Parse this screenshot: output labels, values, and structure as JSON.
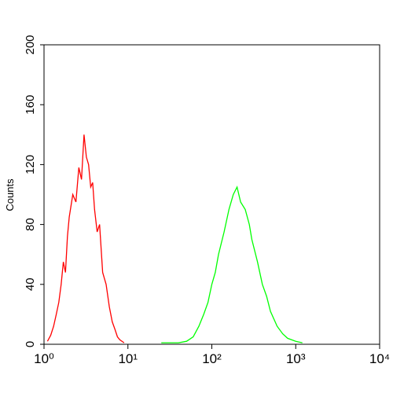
{
  "chart_data": {
    "type": "line",
    "y_label": "Counts",
    "xscale": "log",
    "xlim": [
      1,
      10000
    ],
    "xticks": [
      {
        "value": 1,
        "label": "10⁰"
      },
      {
        "value": 10,
        "label": "10¹"
      },
      {
        "value": 100,
        "label": "10²"
      },
      {
        "value": 1000,
        "label": "10³"
      },
      {
        "value": 10000,
        "label": "10⁴"
      }
    ],
    "ylim": [
      0,
      200
    ],
    "yticks": [
      0,
      40,
      80,
      120,
      160,
      200
    ],
    "series": [
      {
        "color": "#ff0000",
        "x": [
          1.1,
          1.2,
          1.3,
          1.4,
          1.5,
          1.6,
          1.7,
          1.8,
          1.9,
          2.0,
          2.2,
          2.4,
          2.6,
          2.8,
          3.0,
          3.2,
          3.4,
          3.6,
          3.8,
          4.0,
          4.3,
          4.6,
          5.0,
          5.5,
          6.0,
          6.5,
          7.0,
          7.5,
          8.0,
          9.0
        ],
        "values": [
          2,
          6,
          12,
          20,
          28,
          40,
          55,
          48,
          72,
          85,
          100,
          95,
          118,
          110,
          140,
          125,
          120,
          105,
          108,
          90,
          75,
          80,
          48,
          40,
          25,
          15,
          10,
          5,
          3,
          1
        ]
      },
      {
        "color": "#00ff00",
        "x": [
          25,
          30,
          40,
          50,
          60,
          70,
          80,
          90,
          100,
          110,
          120,
          140,
          160,
          180,
          200,
          220,
          250,
          280,
          300,
          350,
          400,
          450,
          500,
          600,
          700,
          800,
          1000,
          1200
        ],
        "values": [
          1,
          1,
          1,
          2,
          5,
          12,
          20,
          28,
          40,
          48,
          60,
          75,
          90,
          100,
          105,
          95,
          90,
          80,
          70,
          55,
          40,
          32,
          22,
          12,
          7,
          4,
          2,
          1
        ]
      }
    ]
  }
}
